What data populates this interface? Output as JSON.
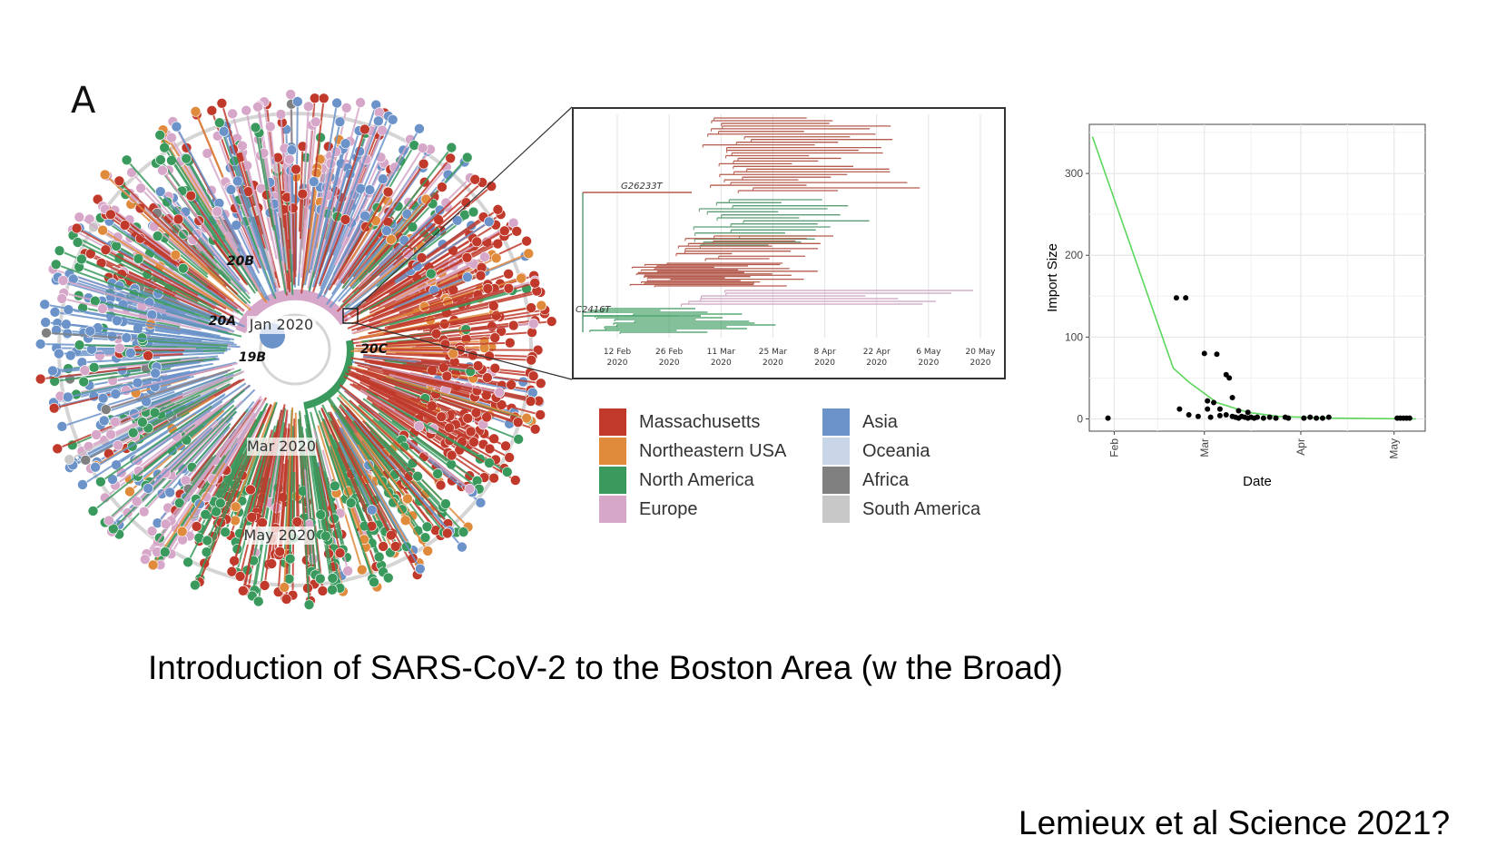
{
  "panel_label": "A",
  "tree": {
    "clade_labels": [
      "20B",
      "20A",
      "19B",
      "20C"
    ],
    "time_labels": [
      "Jan 2020",
      "Mar 2020",
      "May 2020"
    ]
  },
  "inset": {
    "mutation_labels": [
      "G26233T",
      "C2416T"
    ],
    "date_ticks": [
      [
        "12 Feb",
        "2020"
      ],
      [
        "26 Feb",
        "2020"
      ],
      [
        "11 Mar",
        "2020"
      ],
      [
        "25 Mar",
        "2020"
      ],
      [
        "8 Apr",
        "2020"
      ],
      [
        "22 Apr",
        "2020"
      ],
      [
        "6 May",
        "2020"
      ],
      [
        "20 May",
        "2020"
      ]
    ]
  },
  "legend": [
    {
      "label": "Massachusetts",
      "color": "#c0392b"
    },
    {
      "label": "Northeastern USA",
      "color": "#e08a3c"
    },
    {
      "label": "North America",
      "color": "#3a9a5e"
    },
    {
      "label": "Europe",
      "color": "#d6a7c8"
    },
    {
      "label": "Asia",
      "color": "#6b93c9"
    },
    {
      "label": "Oceania",
      "color": "#c9d6e8"
    },
    {
      "label": "Africa",
      "color": "#808080"
    },
    {
      "label": "South America",
      "color": "#c8c8c8"
    }
  ],
  "chart_data": {
    "type": "scatter",
    "xlabel": "Date",
    "ylabel": "Import Size",
    "x_ticks": [
      "Feb",
      "Mar",
      "Apr",
      "May"
    ],
    "y_ticks": [
      0,
      100,
      200,
      300
    ],
    "ylim": [
      -15,
      360
    ],
    "xlim": [
      "2020-01-24",
      "2020-05-11"
    ],
    "grid": true,
    "points": [
      {
        "x": "2020-01-30",
        "y": 1
      },
      {
        "x": "2020-02-21",
        "y": 148
      },
      {
        "x": "2020-02-24",
        "y": 148
      },
      {
        "x": "2020-02-22",
        "y": 12
      },
      {
        "x": "2020-02-25",
        "y": 5
      },
      {
        "x": "2020-03-01",
        "y": 80
      },
      {
        "x": "2020-03-05",
        "y": 79
      },
      {
        "x": "2020-03-08",
        "y": 54
      },
      {
        "x": "2020-03-09",
        "y": 50
      },
      {
        "x": "2020-03-02",
        "y": 22
      },
      {
        "x": "2020-03-04",
        "y": 20
      },
      {
        "x": "2020-03-10",
        "y": 26
      },
      {
        "x": "2020-03-02",
        "y": 12
      },
      {
        "x": "2020-03-06",
        "y": 12
      },
      {
        "x": "2020-03-12",
        "y": 10
      },
      {
        "x": "2020-03-15",
        "y": 8
      },
      {
        "x": "2020-02-28",
        "y": 3
      },
      {
        "x": "2020-03-03",
        "y": 2
      },
      {
        "x": "2020-03-06",
        "y": 4
      },
      {
        "x": "2020-03-08",
        "y": 5
      },
      {
        "x": "2020-03-10",
        "y": 3
      },
      {
        "x": "2020-03-11",
        "y": 2
      },
      {
        "x": "2020-03-12",
        "y": 1
      },
      {
        "x": "2020-03-13",
        "y": 3
      },
      {
        "x": "2020-03-14",
        "y": 2
      },
      {
        "x": "2020-03-15",
        "y": 1
      },
      {
        "x": "2020-03-16",
        "y": 2
      },
      {
        "x": "2020-03-17",
        "y": 1
      },
      {
        "x": "2020-03-18",
        "y": 2
      },
      {
        "x": "2020-03-20",
        "y": 1
      },
      {
        "x": "2020-03-22",
        "y": 2
      },
      {
        "x": "2020-03-24",
        "y": 1
      },
      {
        "x": "2020-03-27",
        "y": 2
      },
      {
        "x": "2020-03-28",
        "y": 1
      },
      {
        "x": "2020-04-02",
        "y": 1
      },
      {
        "x": "2020-04-04",
        "y": 2
      },
      {
        "x": "2020-04-06",
        "y": 1
      },
      {
        "x": "2020-04-08",
        "y": 1
      },
      {
        "x": "2020-04-10",
        "y": 2
      },
      {
        "x": "2020-05-02",
        "y": 1
      },
      {
        "x": "2020-05-03",
        "y": 1
      },
      {
        "x": "2020-05-04",
        "y": 1
      },
      {
        "x": "2020-05-05",
        "y": 1
      },
      {
        "x": "2020-05-06",
        "y": 1
      }
    ],
    "trend_line": {
      "color": "#5cd65c",
      "points": [
        {
          "x": "2020-01-25",
          "y": 345
        },
        {
          "x": "2020-02-20",
          "y": 62
        },
        {
          "x": "2020-02-25",
          "y": 45
        },
        {
          "x": "2020-03-05",
          "y": 20
        },
        {
          "x": "2020-03-15",
          "y": 8
        },
        {
          "x": "2020-03-25",
          "y": 3
        },
        {
          "x": "2020-04-10",
          "y": 1
        },
        {
          "x": "2020-05-08",
          "y": 0
        }
      ]
    }
  },
  "caption": "Introduction of SARS-CoV-2 to the Boston Area (w the Broad)",
  "citation": "Lemieux et al Science 2021?"
}
